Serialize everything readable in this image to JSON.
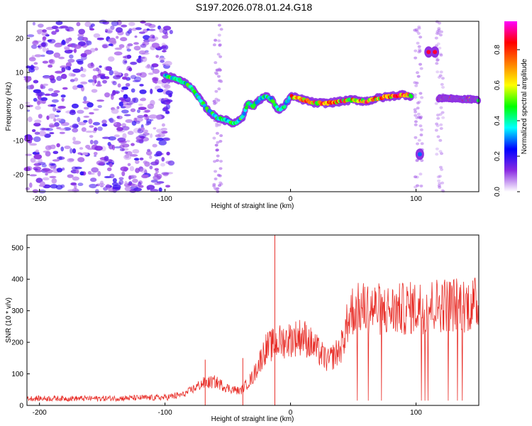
{
  "title": "S197.2026.078.01.24.G18",
  "chart_data": [
    {
      "type": "heatmap",
      "title": "S197.2026.078.01.24.G18",
      "xlabel": "Height of straight line (km)",
      "ylabel": "Frequency (Hz)",
      "xlim": [
        -210,
        150
      ],
      "ylim": [
        -25,
        25
      ],
      "x_ticks": [
        "-200",
        "-100",
        "0",
        "100"
      ],
      "y_ticks": [
        "-20",
        "-10",
        "0",
        "10",
        "20"
      ],
      "colorbar": {
        "label": "Normalized spectral amplitude",
        "range": [
          0.0,
          0.96
        ],
        "ticks": [
          "0.0",
          "0.2",
          "0.4",
          "0.6",
          "0.8"
        ],
        "colors": [
          "#ffffff",
          "#8a2be2",
          "#0000ff",
          "#00ffff",
          "#00ff00",
          "#ffff00",
          "#ff8000",
          "#ff0000",
          "#ff00ff"
        ]
      },
      "ridge": {
        "x": [
          -100,
          -90,
          -80,
          -72,
          -66,
          -60,
          -52,
          -45,
          -38,
          -34,
          -30,
          -25,
          -20,
          -15,
          -10,
          -5,
          0,
          10,
          20,
          30,
          40,
          50,
          60,
          70,
          80,
          90,
          97
        ],
        "y": [
          9,
          8,
          6,
          2,
          -1,
          -3,
          -4,
          -5,
          -3,
          1,
          0,
          2,
          3,
          2,
          -1,
          0,
          3,
          2,
          1,
          1,
          1.5,
          2,
          1.5,
          2.5,
          3,
          3.5,
          3
        ]
      },
      "scattered_noise_region_x": [
        -210,
        -95
      ],
      "isolated_blobs": [
        {
          "x": 103,
          "y": -14
        },
        {
          "x": 110,
          "y": 16
        },
        {
          "x": 115,
          "y": 16
        }
      ],
      "ridge_tail": {
        "x": [
          118,
          150
        ],
        "y": [
          2.5,
          2
        ]
      }
    },
    {
      "type": "line",
      "xlabel": "Height of straight line (km)",
      "ylabel": "SNR (10 * v/v)",
      "xlim": [
        -210,
        150
      ],
      "ylim": [
        0,
        540
      ],
      "x_ticks": [
        "-200",
        "-100",
        "0",
        "100"
      ],
      "y_ticks": [
        "0",
        "100",
        "200",
        "300",
        "400",
        "500"
      ],
      "series_color": "#e8302a",
      "envelope": {
        "x": [
          -210,
          -150,
          -100,
          -85,
          -70,
          -60,
          -50,
          -40,
          -30,
          -20,
          -10,
          0,
          10,
          20,
          30,
          40,
          48,
          60,
          80,
          100,
          120,
          150
        ],
        "y": [
          22,
          22,
          25,
          35,
          70,
          75,
          55,
          45,
          90,
          180,
          200,
          210,
          220,
          180,
          140,
          180,
          300,
          310,
          300,
          310,
          320,
          320
        ]
      },
      "spikes": [
        {
          "x": -12.5,
          "y": 540
        },
        {
          "x": -38,
          "y": 150
        },
        {
          "x": -68,
          "y": 145
        }
      ]
    }
  ]
}
